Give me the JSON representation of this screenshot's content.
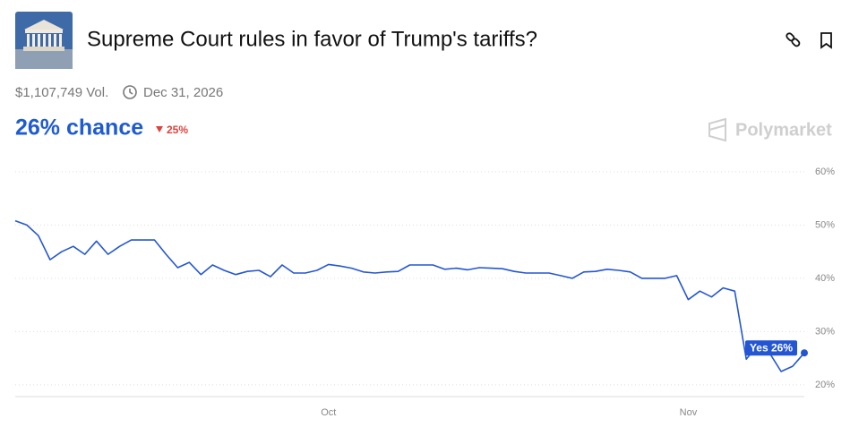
{
  "header": {
    "title": "Supreme Court rules in favor of Trump's tariffs?",
    "volume": "$1,107,749 Vol.",
    "end_date": "Dec 31, 2026",
    "chance": "26% chance",
    "change": "25%",
    "brand": "Polymarket"
  },
  "chart_data": {
    "type": "line",
    "categories": [
      null,
      null,
      null,
      null,
      null,
      null,
      null,
      null,
      null,
      null,
      null,
      null,
      null,
      null,
      null,
      null,
      null,
      null,
      null,
      null,
      null,
      null,
      null,
      null,
      null,
      null,
      null,
      "Oct",
      null,
      null,
      null,
      null,
      null,
      null,
      null,
      null,
      null,
      null,
      null,
      null,
      null,
      null,
      null,
      null,
      null,
      null,
      null,
      null,
      null,
      null,
      null,
      null,
      null,
      null,
      null,
      null,
      null,
      null,
      "Nov",
      null,
      null,
      null,
      null,
      null,
      null,
      null,
      null,
      null,
      null
    ],
    "values": [
      50.8,
      50,
      48,
      43.5,
      45,
      46,
      44.5,
      47,
      44.5,
      46,
      47.2,
      47.2,
      47.2,
      44.5,
      42,
      43,
      40.7,
      42.5,
      41.5,
      40.7,
      41.3,
      41.5,
      40.3,
      42.5,
      41,
      41,
      41.5,
      42.6,
      42.3,
      41.9,
      41.2,
      41,
      41.2,
      41.3,
      42.5,
      42.5,
      42.5,
      41.7,
      41.9,
      41.6,
      42,
      41.9,
      41.8,
      41.3,
      41,
      41,
      41,
      40.5,
      40,
      41.2,
      41.3,
      41.7,
      41.5,
      41.2,
      40,
      40,
      40,
      40.5,
      36,
      37.6,
      36.5,
      38.2,
      37.6,
      24.8,
      27.5,
      26,
      22.5,
      23.5,
      26
    ],
    "color": "#2456d3",
    "annotation": "Yes 26%",
    "ylim": [
      17.8,
      62
    ],
    "yticks": [
      {
        "value": 20,
        "label": "20%"
      },
      {
        "value": 30,
        "label": "30%"
      },
      {
        "value": 40,
        "label": "40%"
      },
      {
        "value": 50,
        "label": "50%"
      },
      {
        "value": 60,
        "label": "60%"
      }
    ],
    "grid": true
  }
}
